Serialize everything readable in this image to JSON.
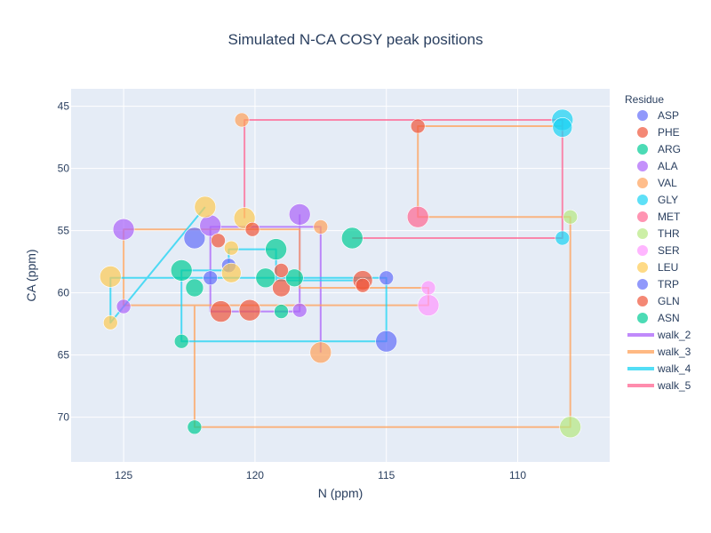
{
  "chart_data": {
    "type": "scatter",
    "title": "Simulated N-CA COSY peak positions",
    "xlabel": "N (ppm)",
    "ylabel": "CA (ppm)",
    "xlim": [
      127,
      106.5
    ],
    "ylim": [
      73.6,
      43.6
    ],
    "x_reversed": true,
    "y_reversed": true,
    "xticks": [
      125,
      120,
      115,
      110
    ],
    "yticks": [
      45,
      50,
      55,
      60,
      65,
      70
    ],
    "grid": true,
    "legend_title": "Residue",
    "legend_position": "right",
    "series": [
      {
        "name": "ASP",
        "color": "#636efa",
        "points": [
          {
            "x": 122.3,
            "y": 55.6,
            "s": 24
          },
          {
            "x": 121.0,
            "y": 57.8,
            "s": 16
          }
        ]
      },
      {
        "name": "PHE",
        "color": "#EF553B",
        "points": [
          {
            "x": 121.3,
            "y": 61.5,
            "s": 24
          },
          {
            "x": 120.2,
            "y": 61.4,
            "s": 24
          },
          {
            "x": 119.0,
            "y": 59.6,
            "s": 20
          },
          {
            "x": 115.9,
            "y": 59.0,
            "s": 22
          },
          {
            "x": 113.8,
            "y": 46.6,
            "s": 16
          }
        ]
      },
      {
        "name": "ARG",
        "color": "#00cc96",
        "points": [
          {
            "x": 122.3,
            "y": 59.6,
            "s": 20
          },
          {
            "x": 122.3,
            "y": 70.8,
            "s": 16
          },
          {
            "x": 118.5,
            "y": 58.8,
            "s": 20
          },
          {
            "x": 116.3,
            "y": 55.6,
            "s": 24
          }
        ]
      },
      {
        "name": "ALA",
        "color": "#ab63fa",
        "points": [
          {
            "x": 125.0,
            "y": 54.9,
            "s": 24
          },
          {
            "x": 125.0,
            "y": 61.1,
            "s": 16
          },
          {
            "x": 121.7,
            "y": 54.6,
            "s": 24
          },
          {
            "x": 118.3,
            "y": 53.7,
            "s": 24
          },
          {
            "x": 118.3,
            "y": 61.4,
            "s": 16
          }
        ]
      },
      {
        "name": "VAL",
        "color": "#FFA15A",
        "points": [
          {
            "x": 117.5,
            "y": 64.8,
            "s": 24
          },
          {
            "x": 117.5,
            "y": 54.7,
            "s": 16
          },
          {
            "x": 120.5,
            "y": 46.1,
            "s": 16
          }
        ]
      },
      {
        "name": "GLY",
        "color": "#19d3f3",
        "points": [
          {
            "x": 108.3,
            "y": 46.1,
            "s": 24
          },
          {
            "x": 108.3,
            "y": 46.7,
            "s": 22
          },
          {
            "x": 108.3,
            "y": 55.6,
            "s": 16
          }
        ]
      },
      {
        "name": "MET",
        "color": "#FF6692",
        "points": [
          {
            "x": 113.8,
            "y": 53.9,
            "s": 24
          }
        ]
      },
      {
        "name": "THR",
        "color": "#B6E880",
        "points": [
          {
            "x": 108.0,
            "y": 53.9,
            "s": 16
          },
          {
            "x": 108.0,
            "y": 70.8,
            "s": 24
          }
        ]
      },
      {
        "name": "SER",
        "color": "#FF97FF",
        "points": [
          {
            "x": 113.4,
            "y": 61.0,
            "s": 24
          },
          {
            "x": 113.4,
            "y": 59.6,
            "s": 16
          }
        ]
      },
      {
        "name": "LEU",
        "color": "#FECB52",
        "points": [
          {
            "x": 125.5,
            "y": 58.7,
            "s": 24
          },
          {
            "x": 125.5,
            "y": 62.4,
            "s": 16
          },
          {
            "x": 121.9,
            "y": 53.1,
            "s": 24
          },
          {
            "x": 120.4,
            "y": 54.0,
            "s": 24
          },
          {
            "x": 120.9,
            "y": 58.4,
            "s": 22
          },
          {
            "x": 120.9,
            "y": 56.4,
            "s": 16
          }
        ]
      },
      {
        "name": "TRP",
        "color": "#636efa",
        "points": [
          {
            "x": 115.0,
            "y": 63.9,
            "s": 24
          },
          {
            "x": 115.0,
            "y": 58.8,
            "s": 16
          },
          {
            "x": 121.7,
            "y": 58.8,
            "s": 16
          }
        ]
      },
      {
        "name": "GLN",
        "color": "#EF553B",
        "points": [
          {
            "x": 120.1,
            "y": 54.9,
            "s": 16
          },
          {
            "x": 121.4,
            "y": 55.8,
            "s": 16
          },
          {
            "x": 119.0,
            "y": 58.2,
            "s": 16
          },
          {
            "x": 115.9,
            "y": 59.4,
            "s": 16
          }
        ]
      },
      {
        "name": "ASN",
        "color": "#00cc96",
        "points": [
          {
            "x": 122.8,
            "y": 58.2,
            "s": 24
          },
          {
            "x": 122.8,
            "y": 63.9,
            "s": 16
          },
          {
            "x": 119.2,
            "y": 56.5,
            "s": 24
          },
          {
            "x": 119.6,
            "y": 58.8,
            "s": 22
          },
          {
            "x": 119.0,
            "y": 61.5,
            "s": 16
          }
        ]
      }
    ],
    "walks": [
      {
        "name": "walk_2",
        "color": "#ab63fa",
        "points": [
          {
            "x": 117.5,
            "y": 64.8
          },
          {
            "x": 117.5,
            "y": 54.7
          },
          {
            "x": 121.7,
            "y": 54.7
          },
          {
            "x": 121.7,
            "y": 61.5
          },
          {
            "x": 118.3,
            "y": 61.5
          },
          {
            "x": 118.3,
            "y": 53.7
          }
        ]
      },
      {
        "name": "walk_3",
        "color": "#FFA15A",
        "points": [
          {
            "x": 125.0,
            "y": 61.0
          },
          {
            "x": 125.0,
            "y": 54.9
          },
          {
            "x": 118.3,
            "y": 54.9
          },
          {
            "x": 118.3,
            "y": 59.6
          },
          {
            "x": 113.4,
            "y": 59.6
          },
          {
            "x": 113.4,
            "y": 61.0
          },
          {
            "x": 125.0,
            "y": 61.0
          },
          {
            "x": 122.3,
            "y": 61.0
          },
          {
            "x": 122.3,
            "y": 70.8
          },
          {
            "x": 108.0,
            "y": 70.8
          },
          {
            "x": 108.0,
            "y": 53.9
          },
          {
            "x": 113.8,
            "y": 53.9
          },
          {
            "x": 113.8,
            "y": 46.6
          },
          {
            "x": 108.3,
            "y": 46.6
          }
        ]
      },
      {
        "name": "walk_4",
        "color": "#19d3f3",
        "points": [
          {
            "x": 121.9,
            "y": 53.1
          },
          {
            "x": 125.5,
            "y": 62.4
          },
          {
            "x": 125.5,
            "y": 58.8
          },
          {
            "x": 115.0,
            "y": 58.8
          },
          {
            "x": 115.0,
            "y": 63.9
          },
          {
            "x": 122.8,
            "y": 63.9
          },
          {
            "x": 122.8,
            "y": 58.2
          },
          {
            "x": 121.0,
            "y": 58.2
          },
          {
            "x": 121.0,
            "y": 56.5
          },
          {
            "x": 119.2,
            "y": 56.5
          },
          {
            "x": 119.2,
            "y": 59.0
          },
          {
            "x": 115.9,
            "y": 59.0
          }
        ]
      },
      {
        "name": "walk_5",
        "color": "#FF6692",
        "points": [
          {
            "x": 120.4,
            "y": 54.0
          },
          {
            "x": 120.4,
            "y": 46.1
          },
          {
            "x": 108.3,
            "y": 46.1
          },
          {
            "x": 108.3,
            "y": 55.6
          },
          {
            "x": 116.3,
            "y": 55.6
          }
        ]
      }
    ]
  }
}
